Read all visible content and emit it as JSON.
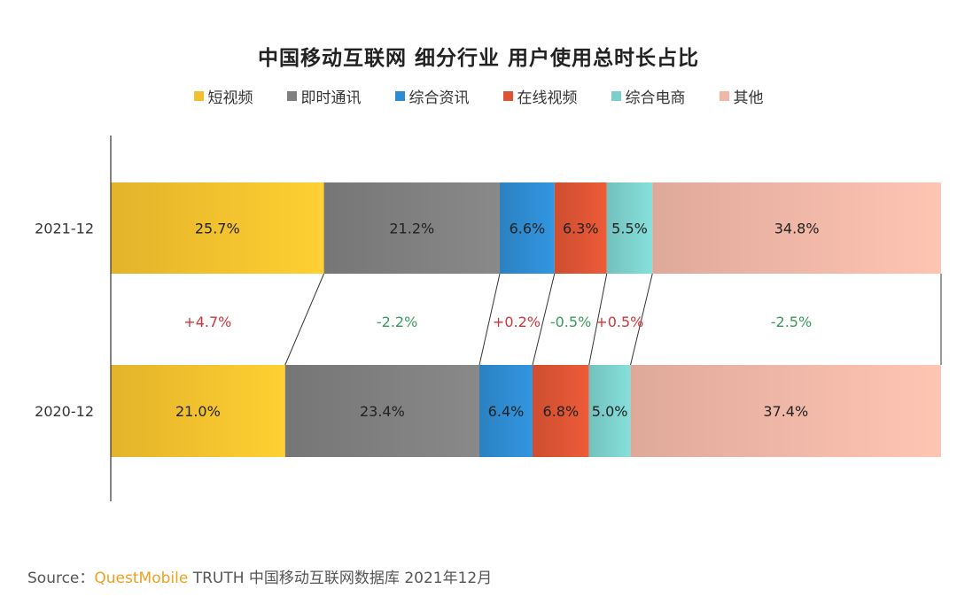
{
  "chart_data": {
    "type": "bar",
    "orientation": "horizontal",
    "stacked": true,
    "normalized": true,
    "title": "中国移动互联网 细分行业 用户使用总时长占比",
    "legend_position": "top",
    "categories": [
      "2021-12",
      "2020-12"
    ],
    "series": [
      {
        "name": "短视频",
        "color": "#f4c12e",
        "values": [
          25.7,
          21.0
        ],
        "labels": [
          "25.7%",
          "21.0%"
        ],
        "change": "+4.7%"
      },
      {
        "name": "即时通讯",
        "color": "#7f7f7f",
        "values": [
          21.2,
          23.4
        ],
        "labels": [
          "21.2%",
          "23.4%"
        ],
        "change": "-2.2%"
      },
      {
        "name": "综合资讯",
        "color": "#2e8bd0",
        "values": [
          6.6,
          6.4
        ],
        "labels": [
          "6.6%",
          "6.4%"
        ],
        "change": "+0.2%"
      },
      {
        "name": "在线视频",
        "color": "#dc5434",
        "values": [
          6.3,
          6.8
        ],
        "labels": [
          "6.3%",
          "6.8%"
        ],
        "change": "-0.5%"
      },
      {
        "name": "综合电商",
        "color": "#7ccfcc",
        "values": [
          5.5,
          5.0
        ],
        "labels": [
          "5.5%",
          "5.0%"
        ],
        "change": "+0.5%"
      },
      {
        "name": "其他",
        "color": "#f0b6a6",
        "values": [
          34.8,
          37.4
        ],
        "labels": [
          "34.8%",
          "37.4%"
        ],
        "change": "-2.5%"
      }
    ],
    "change_colors": {
      "positive": "#d0353a",
      "negative": "#3a9a5a"
    }
  },
  "source": {
    "prefix": "Source：",
    "brand": "QuestMobile",
    "text": "TRUTH 中国移动互联网数据库 2021年12月"
  }
}
